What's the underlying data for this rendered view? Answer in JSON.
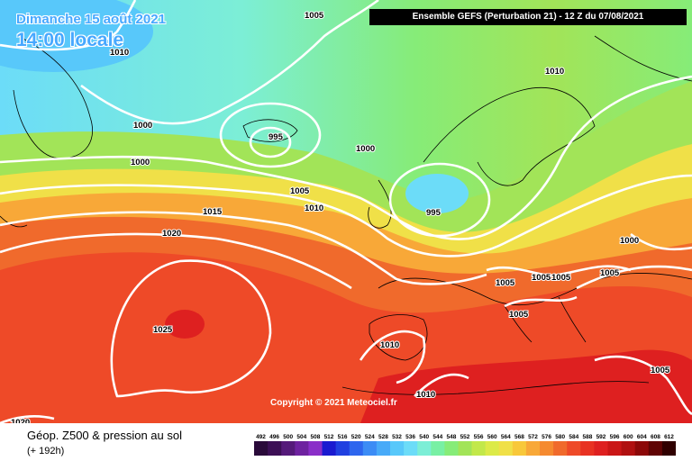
{
  "header": {
    "date_line": "Dimanche 15 août 2021",
    "time_line": "14:00 locale",
    "ensemble_box": "Ensemble GEFS  (Perturbation 21)  -  12 Z du 07/08/2021"
  },
  "copyright": "Copyright © 2021 Meteociel.fr",
  "footer": {
    "title": "Géop. Z500 & pression au sol",
    "lead": "(+ 192h)"
  },
  "legend": {
    "labels": [
      "492",
      "496",
      "500",
      "504",
      "508",
      "512",
      "516",
      "520",
      "524",
      "528",
      "532",
      "536",
      "540",
      "544",
      "548",
      "552",
      "556",
      "560",
      "564",
      "568",
      "572",
      "576",
      "580",
      "584",
      "588",
      "592",
      "596",
      "600",
      "604",
      "608",
      "612"
    ],
    "colors": [
      "#2a0a3a",
      "#3c0f55",
      "#551a7a",
      "#6e22a0",
      "#8a2ec8",
      "#1a1ad0",
      "#2040e0",
      "#2e66ee",
      "#3c8cf5",
      "#48aaf8",
      "#58c8fa",
      "#6cdcf8",
      "#7ceed6",
      "#78f0a4",
      "#86ec78",
      "#a2e458",
      "#c2e84a",
      "#dcea48",
      "#f0e048",
      "#f8c83a",
      "#f8a838",
      "#f58a30",
      "#f06a2c",
      "#ee4a28",
      "#e83222",
      "#de2020",
      "#ca1616",
      "#b01010",
      "#8c0808",
      "#600404",
      "#300000"
    ]
  },
  "isobars": [
    {
      "label": "1005"
    },
    {
      "label": "1010"
    },
    {
      "label": "1000"
    },
    {
      "label": "995"
    },
    {
      "label": "1000"
    },
    {
      "label": "1010"
    },
    {
      "label": "1000"
    },
    {
      "label": "1005"
    },
    {
      "label": "1010"
    },
    {
      "label": "995"
    },
    {
      "label": "1015"
    },
    {
      "label": "1020"
    },
    {
      "label": "1025"
    },
    {
      "label": "1005"
    },
    {
      "label": "1005"
    },
    {
      "label": "1005"
    },
    {
      "label": "1005"
    },
    {
      "label": "1005"
    },
    {
      "label": "1010"
    },
    {
      "label": "1010"
    },
    {
      "label": "1005"
    },
    {
      "label": "1020"
    },
    {
      "label": "1000"
    }
  ]
}
